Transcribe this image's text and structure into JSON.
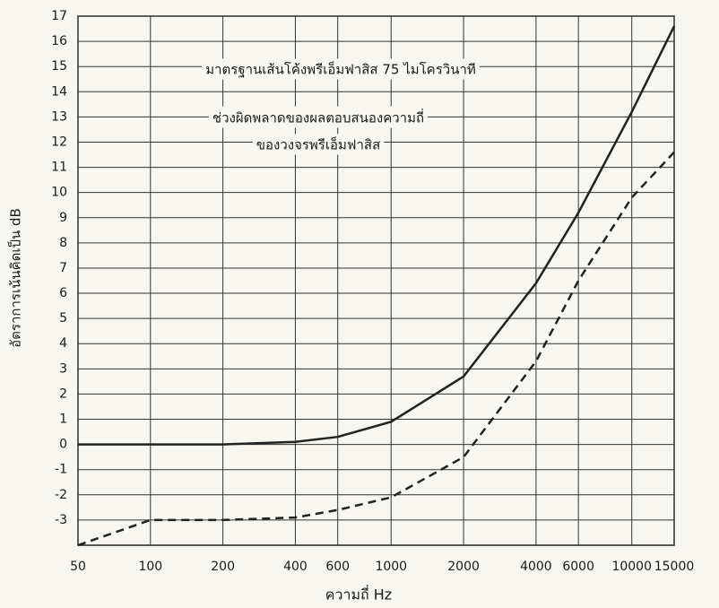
{
  "chart_data": {
    "type": "line",
    "x_label": "ความถี่ Hz",
    "y_label": "อัตราการเน้นคิดเป็น dB",
    "annotations": [
      "มาตรฐานเส้นโค้งพรีเอ็มฟาสิส 75 ไมโครวินาที",
      "ช่วงผิดพลาดของผลตอบสนองความถี่",
      "ของวงจรพรีเอ็มฟาสิส"
    ],
    "x": [
      50,
      100,
      200,
      400,
      600,
      1000,
      2000,
      4000,
      6000,
      10000,
      15000
    ],
    "x_log": true,
    "xlim": [
      50,
      15000
    ],
    "xticks": [
      50,
      100,
      200,
      400,
      600,
      1000,
      2000,
      4000,
      6000,
      10000,
      15000
    ],
    "ylim": [
      -4,
      17
    ],
    "yticks": [
      -3,
      -2,
      -1,
      0,
      1,
      2,
      3,
      4,
      5,
      6,
      7,
      8,
      9,
      10,
      11,
      12,
      13,
      14,
      15,
      16,
      17
    ],
    "grid": true,
    "series": [
      {
        "color": "#222222",
        "dash": false,
        "values": [
          0,
          0,
          0,
          0.1,
          0.3,
          0.9,
          2.7,
          6.4,
          9.2,
          13.2,
          16.6
        ]
      },
      {
        "color": "#222222",
        "dash": true,
        "values": [
          -4,
          -3,
          -3,
          -2.9,
          -2.6,
          -2.1,
          -0.5,
          3.3,
          6.5,
          9.8,
          11.6
        ]
      }
    ]
  }
}
